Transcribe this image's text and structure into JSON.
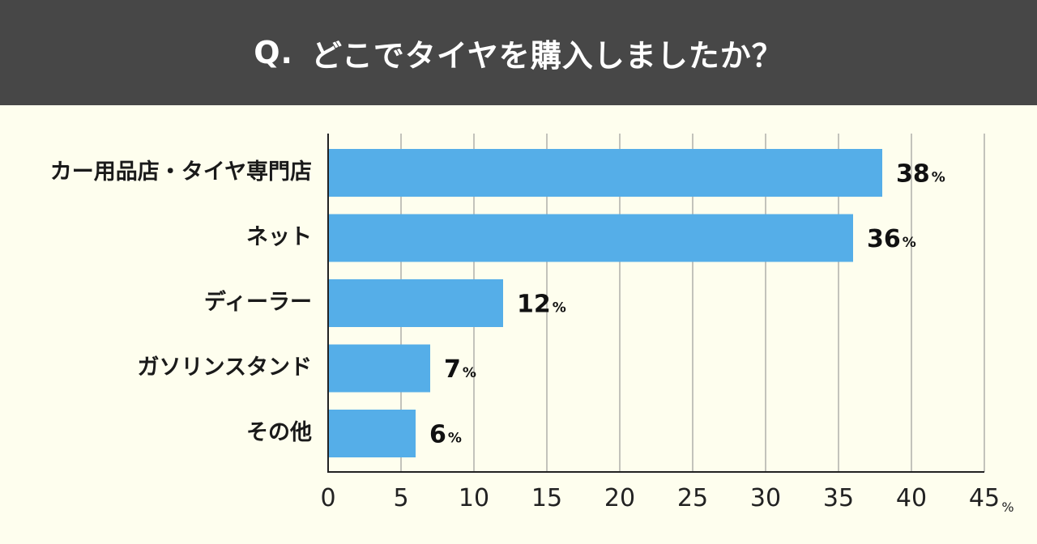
{
  "title": {
    "prefix": "Q.",
    "text": "どこでタイヤを購入しましたか？"
  },
  "colors": {
    "header_bg": "#474747",
    "background": "#fefeee",
    "bar": "#55aee8",
    "grid": "#888888"
  },
  "chart_data": {
    "type": "bar",
    "orientation": "horizontal",
    "categories": [
      "カー用品店・タイヤ専門店",
      "ネット",
      "ディーラー",
      "ガソリンスタンド",
      "その他"
    ],
    "values": [
      38,
      36,
      12,
      7,
      6
    ],
    "value_suffix": "%",
    "xlim": [
      0,
      45
    ],
    "x_ticks": [
      0,
      5,
      10,
      15,
      20,
      25,
      30,
      35,
      40,
      45
    ],
    "x_unit": "%",
    "grid": "vertical"
  }
}
